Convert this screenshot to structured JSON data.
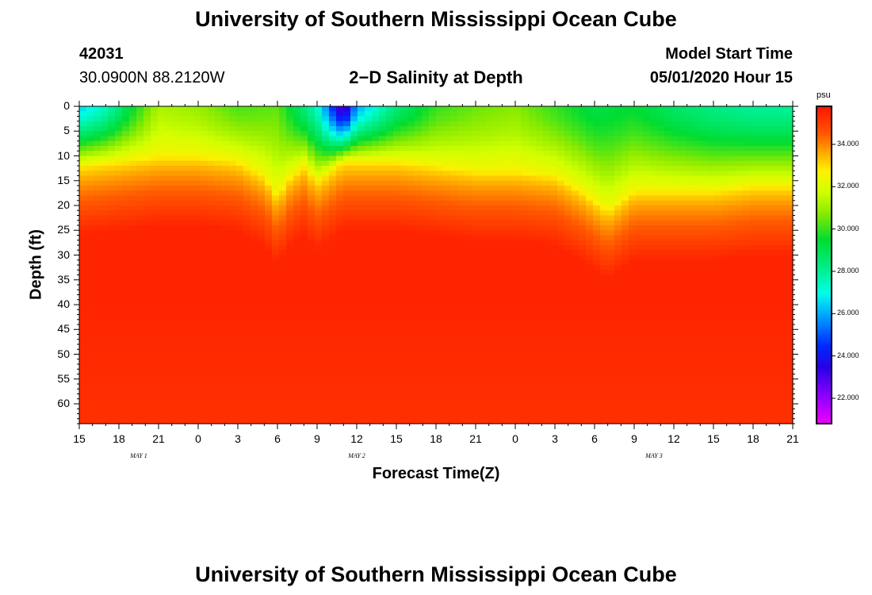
{
  "header": {
    "title": "University of Southern Mississippi Ocean Cube",
    "station_id": "42031",
    "station_coords": "30.0900N 88.2120W",
    "plot_title": "2−D Salinity at Depth",
    "model_label": "Model Start Time",
    "model_time": "05/01/2020 Hour 15"
  },
  "footer": {
    "title": "University of Southern Mississippi Ocean Cube"
  },
  "chart_data": {
    "type": "heatmap",
    "title": "2−D Salinity at Depth",
    "xlabel": "Forecast Time(Z)",
    "ylabel": "Depth (ft)",
    "x_hours": [
      0,
      54
    ],
    "x_tick_labels": [
      "15",
      "18",
      "21",
      "0",
      "3",
      "6",
      "9",
      "12",
      "15",
      "18",
      "21",
      "0",
      "3",
      "6",
      "9",
      "12",
      "15",
      "18",
      "21"
    ],
    "day_labels": [
      "MAY 1",
      "MAY 2",
      "MAY 3"
    ],
    "day_label_hours": [
      4.5,
      21,
      43.5
    ],
    "ylim": [
      0,
      64
    ],
    "y_tick_labels": [
      "0",
      "5",
      "10",
      "15",
      "20",
      "25",
      "30",
      "35",
      "40",
      "45",
      "50",
      "55",
      "60"
    ],
    "y_tick_values": [
      0,
      5,
      10,
      15,
      20,
      25,
      30,
      35,
      40,
      45,
      50,
      55,
      60
    ],
    "colorbar": {
      "unit": "psu",
      "range": [
        20.8,
        35.8
      ],
      "tick_values": [
        34,
        32,
        30,
        28,
        26,
        24,
        22
      ],
      "tick_labels": [
        "34.000",
        "32.000",
        "30.000",
        "28.000",
        "26.000",
        "24.000",
        "22.000"
      ]
    },
    "halocline_depth_ft": {
      "hours": [
        0,
        3,
        6,
        9,
        12,
        14,
        15,
        16,
        17,
        18,
        20,
        24,
        27,
        30,
        33,
        36,
        38,
        40,
        42,
        45,
        48,
        51,
        54
      ],
      "values": [
        12,
        11,
        10,
        10,
        11,
        14,
        18,
        14,
        12,
        15,
        11,
        11,
        12,
        13,
        13,
        14,
        17,
        21,
        17,
        17,
        17,
        16,
        16
      ]
    },
    "surface_salinity_psu": {
      "hours": [
        0,
        2,
        4,
        6,
        9,
        12,
        15,
        18,
        20,
        21,
        24,
        27,
        30,
        33,
        36,
        39,
        42,
        45,
        48,
        51,
        54
      ],
      "values": [
        26.5,
        27.5,
        29.5,
        31.3,
        31.0,
        30.2,
        30.4,
        27.5,
        22.5,
        26.0,
        28.5,
        30.0,
        30.5,
        30.8,
        30.0,
        29.2,
        29.5,
        28.8,
        28.3,
        28.0,
        28.0
      ]
    },
    "deep_salinity_psu": 35.5
  }
}
